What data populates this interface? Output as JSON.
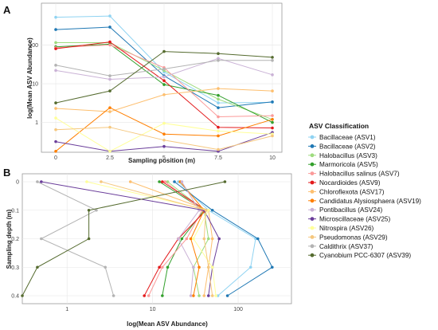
{
  "panels": {
    "a": {
      "letter": "A"
    },
    "b": {
      "letter": "B"
    }
  },
  "legend": {
    "title": "ASV Classification",
    "entries": [
      {
        "name": "Bacillaceae (ASV1)",
        "color": "#8fd3f2"
      },
      {
        "name": "Bacillaceae (ASV2)",
        "color": "#1f78b4"
      },
      {
        "name": "Halobacillus (ASV3)",
        "color": "#9edc7e"
      },
      {
        "name": "Marmoricola (ASV5)",
        "color": "#33a02c"
      },
      {
        "name": "Halobacillus salinus (ASV7)",
        "color": "#fb9a99"
      },
      {
        "name": "Nocardioides (ASV9)",
        "color": "#e31a1c"
      },
      {
        "name": "Chloroflexota (ASV17)",
        "color": "#fdbf6f"
      },
      {
        "name": "Candidatus Alysiosphaera (ASV19)",
        "color": "#ff7f00"
      },
      {
        "name": "Pontibacillus (ASV24)",
        "color": "#cab2d6"
      },
      {
        "name": "Microscillaceae (ASV25)",
        "color": "#6a3d9a"
      },
      {
        "name": "Nitrospira (ASV26)",
        "color": "#ffff99"
      },
      {
        "name": "Pseudomonas (ASV29)",
        "color": "#f5c77e"
      },
      {
        "name": "Caldithrix (ASV37)",
        "color": "#b3b3b3"
      },
      {
        "name": "Cyanobium PCC-6307 (ASV39)",
        "color": "#556b2f"
      }
    ]
  },
  "chart_data": [
    {
      "type": "line",
      "panel": "A",
      "xlabel": "Sampling position (m)",
      "ylabel": "log(Mean ASV Abundance)",
      "x": [
        0,
        2.5,
        5,
        7.5,
        10
      ],
      "xticks": [
        "0",
        "2.5",
        "5",
        "7.5",
        "10"
      ],
      "ylog": true,
      "ylim": [
        0.17,
        1200
      ],
      "yticks": [
        1,
        10,
        100
      ],
      "ytick_labels": [
        "1",
        "10",
        "100"
      ],
      "grid": true,
      "series": [
        {
          "name": "Bacillaceae (ASV1)",
          "color": "#8fd3f2",
          "values": [
            520,
            560,
            20,
            3.2,
            3.3
          ]
        },
        {
          "name": "Bacillaceae (ASV2)",
          "color": "#1f78b4",
          "values": [
            250,
            290,
            16,
            2.4,
            3.4
          ]
        },
        {
          "name": "Halobacillus (ASV3)",
          "color": "#9edc7e",
          "values": [
            115,
            115,
            22,
            4,
            1.2
          ]
        },
        {
          "name": "Marmoricola (ASV5)",
          "color": "#33a02c",
          "values": [
            90,
            105,
            9.5,
            5,
            1
          ]
        },
        {
          "name": "Halobacillus salinus (ASV7)",
          "color": "#fb9a99",
          "values": [
            85,
            100,
            26,
            1.4,
            1.5
          ]
        },
        {
          "name": "Nocardioides (ASV9)",
          "color": "#e31a1c",
          "values": [
            80,
            120,
            12,
            0.75,
            0.72
          ]
        },
        {
          "name": "Chloroflexota (ASV17)",
          "color": "#fdbf6f",
          "values": [
            2.3,
            1.9,
            5.2,
            7.5,
            6.5
          ]
        },
        {
          "name": "Candidatus Alysiosphaera (ASV19)",
          "color": "#ff7f00",
          "values": [
            0.18,
            2.4,
            0.5,
            0.45,
            1.2
          ]
        },
        {
          "name": "Pontibacillus (ASV24)",
          "color": "#cab2d6",
          "values": [
            22,
            13,
            15,
            45,
            17
          ]
        },
        {
          "name": "Microscillaceae (ASV25)",
          "color": "#6a3d9a",
          "values": [
            0.32,
            0.18,
            0.24,
            0.18,
            0.55
          ]
        },
        {
          "name": "Nitrospira (ASV26)",
          "color": "#ffff99",
          "values": [
            1.3,
            0.18,
            0.95,
            0.6,
            0.5
          ]
        },
        {
          "name": "Pseudomonas (ASV29)",
          "color": "#f5c77e",
          "values": [
            0.65,
            0.75,
            0.35,
            0.2,
            0.45
          ]
        },
        {
          "name": "Caldithrix (ASV37)",
          "color": "#b3b3b3",
          "values": [
            30,
            16,
            24,
            40,
            40
          ]
        },
        {
          "name": "Cyanobium PCC-6307 (ASV39)",
          "color": "#556b2f",
          "values": [
            3.2,
            6.5,
            68,
            60,
            48
          ]
        }
      ]
    },
    {
      "type": "line",
      "panel": "B",
      "xlabel": "log(Mean ASV Abundance)",
      "ylabel": "Sampling depth (m)",
      "xlog": true,
      "xlim": [
        0.3,
        420
      ],
      "xticks": [
        1,
        10,
        100
      ],
      "xtick_labels": [
        "1",
        "10",
        "100"
      ],
      "y": [
        0,
        0.1,
        0.2,
        0.3,
        0.4
      ],
      "yticks": [
        "0",
        "0.1",
        "0.2",
        "0.3",
        "0.4"
      ],
      "y_reversed": true,
      "grid": true,
      "series": [
        {
          "name": "Bacillaceae (ASV1)",
          "color": "#8fd3f2",
          "values": [
            20,
            45,
            160,
            140,
            58
          ]
        },
        {
          "name": "Bacillaceae (ASV2)",
          "color": "#1f78b4",
          "values": [
            18,
            50,
            170,
            250,
            75
          ]
        },
        {
          "name": "Halobacillus (ASV3)",
          "color": "#9edc7e",
          "values": [
            15,
            40,
            45,
            30,
            35
          ]
        },
        {
          "name": "Marmoricola (ASV5)",
          "color": "#33a02c",
          "values": [
            12,
            40,
            22,
            15,
            13
          ]
        },
        {
          "name": "Halobacillus salinus (ASV7)",
          "color": "#fb9a99",
          "values": [
            14,
            38,
            25,
            13,
            9
          ]
        },
        {
          "name": "Nocardioides (ASV9)",
          "color": "#e31a1c",
          "values": [
            13,
            42,
            20,
            12,
            8
          ]
        },
        {
          "name": "Chloroflexota (ASV17)",
          "color": "#fdbf6f",
          "values": [
            5.5,
            45,
            50,
            45,
            40
          ]
        },
        {
          "name": "Candidatus Alysiosphaera (ASV19)",
          "color": "#ff7f00",
          "values": [
            21,
            40,
            28,
            35,
            30
          ]
        },
        {
          "name": "Pontibacillus (ASV24)",
          "color": "#cab2d6",
          "values": [
            22,
            35,
            20,
            30,
            28
          ]
        },
        {
          "name": "Microscillaceae (ASV25)",
          "color": "#6a3d9a",
          "values": [
            0.5,
            40,
            60,
            50,
            45
          ]
        },
        {
          "name": "Nitrospira (ASV26)",
          "color": "#ffff99",
          "values": [
            1.7,
            45,
            30,
            50,
            55
          ]
        },
        {
          "name": "Pseudomonas (ASV29)",
          "color": "#f5c77e",
          "values": [
            2.5,
            42,
            40,
            45,
            50
          ]
        },
        {
          "name": "Caldithrix (ASV37)",
          "color": "#b3b3b3",
          "values": [
            0.45,
            2.2,
            0.5,
            2.8,
            3.5
          ]
        },
        {
          "name": "Cyanobium PCC-6307 (ASV39)",
          "color": "#556b2f",
          "values": [
            70,
            1.8,
            1.8,
            0.45,
            0.3
          ]
        }
      ]
    }
  ]
}
